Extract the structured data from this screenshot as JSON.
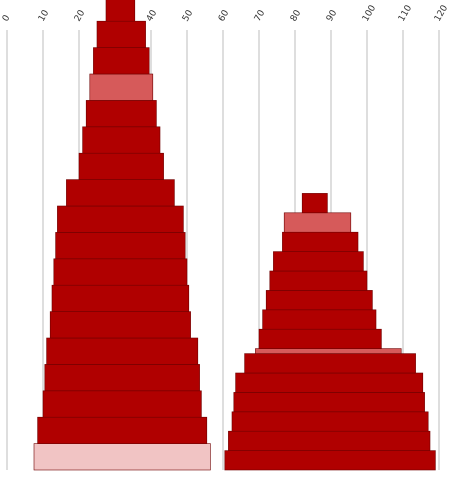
{
  "chart_data": {
    "type": "bar",
    "orientation": "horizontal-stacked-rows",
    "title": "",
    "xlabel": "",
    "ylabel": "",
    "x_ticks": [
      "0",
      "10",
      "20",
      "30",
      "40",
      "50",
      "60",
      "70",
      "80",
      "90",
      "100",
      "110",
      "120"
    ],
    "xlim": [
      0,
      120
    ],
    "grid": true,
    "axis_position": "top",
    "colors": {
      "base": "#b00000",
      "highlight": "#d65a5a",
      "faint": "#f1c4c4",
      "edge": "#6e0000",
      "grid": "#bdbdbd"
    },
    "series": [
      {
        "stacks": [
          {
            "xmin": 7.5,
            "xmax": 56.5,
            "style": "faint"
          },
          {
            "xmin": 8.5,
            "xmax": 55.5,
            "style": "base"
          },
          {
            "xmin": 10,
            "xmax": 54,
            "style": "base"
          },
          {
            "xmin": 10.5,
            "xmax": 53.5,
            "style": "base"
          },
          {
            "xmin": 11,
            "xmax": 53,
            "style": "base"
          },
          {
            "xmin": 12,
            "xmax": 51,
            "style": "base"
          },
          {
            "xmin": 12.5,
            "xmax": 50.5,
            "style": "base"
          },
          {
            "xmin": 13,
            "xmax": 50,
            "style": "base"
          },
          {
            "xmin": 13.5,
            "xmax": 49.5,
            "style": "base"
          },
          {
            "xmin": 14,
            "xmax": 49,
            "style": "base"
          },
          {
            "xmin": 16.5,
            "xmax": 46.5,
            "style": "base"
          },
          {
            "xmin": 20,
            "xmax": 43.5,
            "style": "base"
          },
          {
            "xmin": 21,
            "xmax": 42.5,
            "style": "base"
          },
          {
            "xmin": 22,
            "xmax": 41.5,
            "style": "base"
          },
          {
            "xmin": 23,
            "xmax": 40.5,
            "style": "highlight"
          },
          {
            "xmin": 24,
            "xmax": 39.5,
            "style": "base"
          },
          {
            "xmin": 25,
            "xmax": 38.5,
            "style": "base"
          },
          {
            "xmin": 27.5,
            "xmax": 35.5,
            "style": "base"
          }
        ]
      },
      {
        "stacks": [
          {
            "xmin": 60.5,
            "xmax": 119,
            "style": "base"
          },
          {
            "xmin": 61.5,
            "xmax": 117.5,
            "style": "base"
          },
          {
            "xmin": 62.5,
            "xmax": 117,
            "style": "base"
          },
          {
            "xmin": 63,
            "xmax": 116,
            "style": "base"
          },
          {
            "xmin": 63.5,
            "xmax": 115.5,
            "style": "base"
          },
          {
            "xmin": 66,
            "xmax": 113.5,
            "style": "base"
          },
          {
            "xmin": 69,
            "xmax": 109.5,
            "style": "highlight"
          },
          {
            "xmin": 70,
            "xmax": 104,
            "style": "base"
          },
          {
            "xmin": 71,
            "xmax": 102.5,
            "style": "base"
          },
          {
            "xmin": 72,
            "xmax": 101.5,
            "style": "base"
          },
          {
            "xmin": 73,
            "xmax": 100,
            "style": "base"
          },
          {
            "xmin": 74,
            "xmax": 99,
            "style": "base"
          },
          {
            "xmin": 76.5,
            "xmax": 97.5,
            "style": "base"
          },
          {
            "xmin": 77,
            "xmax": 95.5,
            "style": "highlight"
          },
          {
            "xmin": 82,
            "xmax": 89,
            "style": "base"
          }
        ]
      }
    ]
  }
}
